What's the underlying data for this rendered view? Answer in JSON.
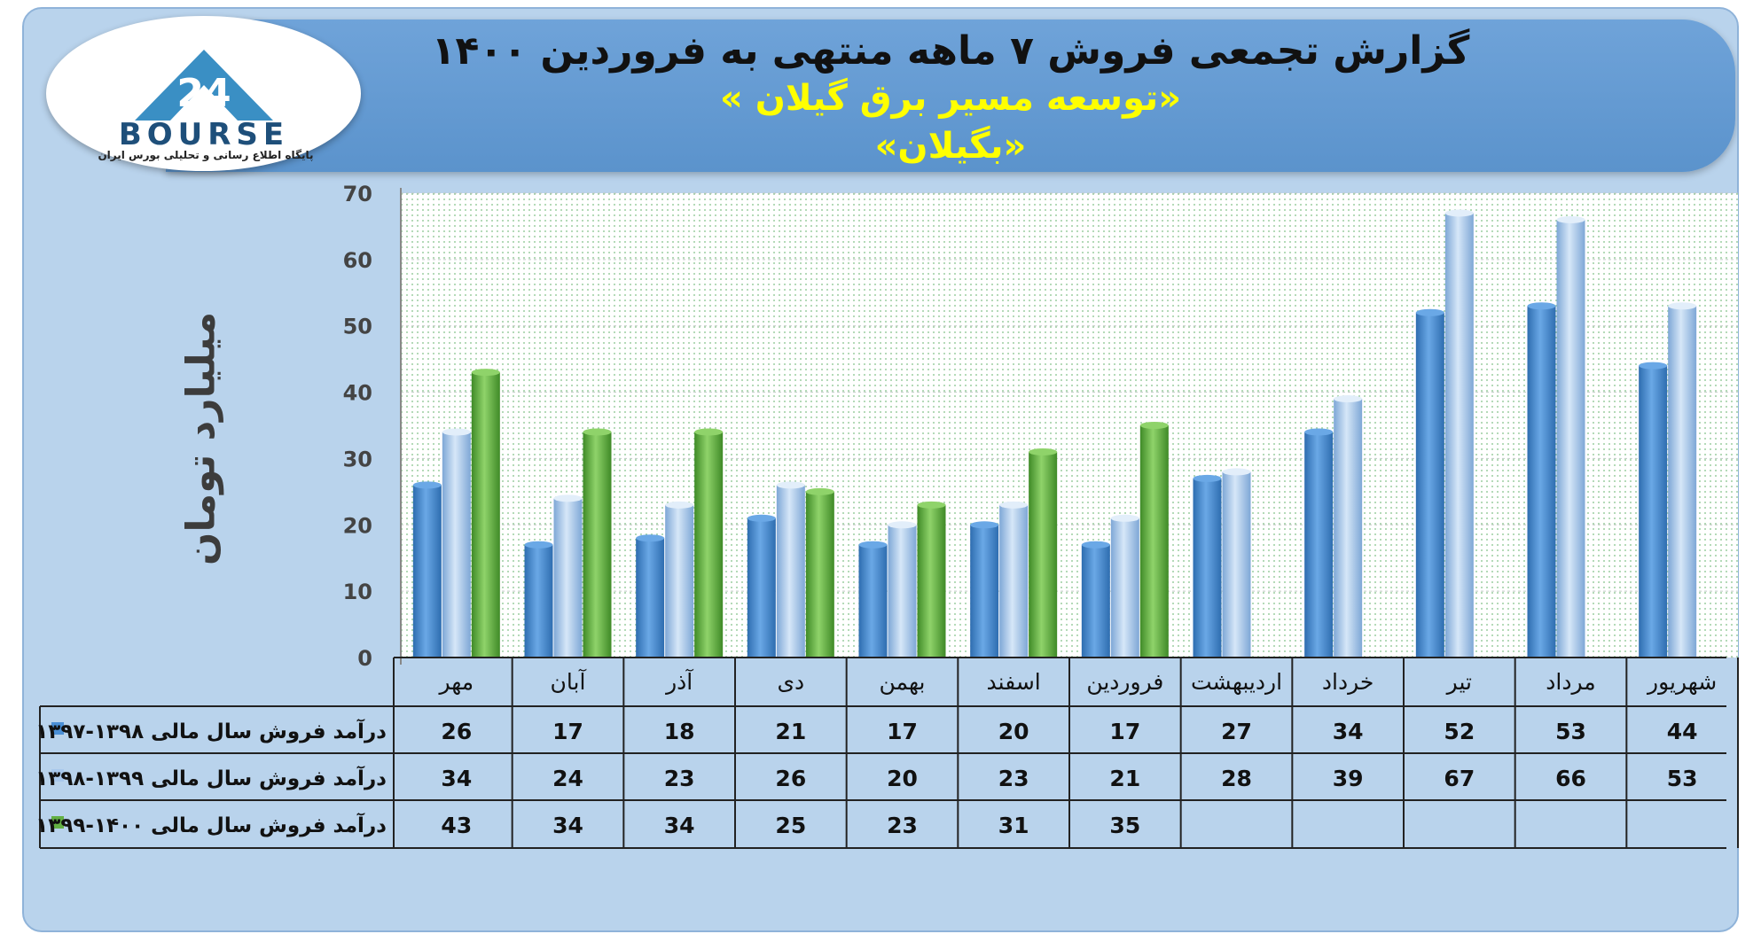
{
  "colors": {
    "series_1": "#4a8fd6",
    "series_2": "#a8c8ec",
    "series_3": "#63b043"
  },
  "header": {
    "title": "گزارش تجمعی فروش ۷ ماهه منتهی به فروردین ۱۴۰۰",
    "company": "«توسعه مسیر برق گیلان »",
    "symbol": "«بگیلان»"
  },
  "logo": {
    "wordmark": "BOURSE",
    "tagline": "پایگاه اطلاع رسانی و تحلیلی بورس ایران",
    "icon": "24-triangle-logo"
  },
  "chart_data": {
    "type": "bar",
    "ylabel": "میلیارد تومان",
    "ylim": [
      0,
      70
    ],
    "yticks": [
      0,
      10,
      20,
      30,
      40,
      50,
      60,
      70
    ],
    "grid": true,
    "categories": [
      "مهر",
      "آبان",
      "آذر",
      "دی",
      "بهمن",
      "اسفند",
      "فروردین",
      "اردیبهشت",
      "خرداد",
      "تیر",
      "مرداد",
      "شهریور"
    ],
    "series": [
      {
        "name": "درآمد فروش سال مالی ۱۳۹۸-۱۳۹۷",
        "values": [
          26,
          17,
          18,
          21,
          17,
          20,
          17,
          27,
          34,
          52,
          53,
          44
        ]
      },
      {
        "name": "درآمد فروش سال مالی ۱۳۹۹-۱۳۹۸",
        "values": [
          34,
          24,
          23,
          26,
          20,
          23,
          21,
          28,
          39,
          67,
          66,
          53
        ]
      },
      {
        "name": "درآمد فروش سال مالی ۱۴۰۰-۱۳۹۹",
        "values": [
          43,
          34,
          34,
          25,
          23,
          31,
          35,
          null,
          null,
          null,
          null,
          null
        ]
      }
    ],
    "legend": "table-below"
  }
}
